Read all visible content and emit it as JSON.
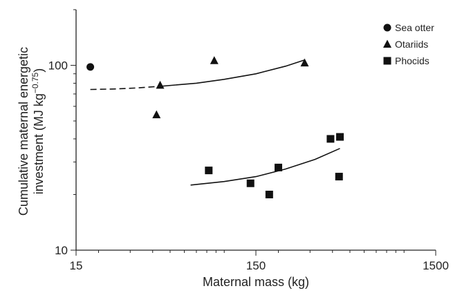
{
  "chart_data": {
    "type": "scatter",
    "title": "",
    "xlabel": "Maternal mass (kg)",
    "ylabel_line1": "Cumulative maternal energetic",
    "ylabel_line2_prefix": "investment (MJ kg",
    "ylabel_exponent": "−0.75",
    "ylabel_line2_suffix": ")",
    "x_scale": "log",
    "y_scale": "log",
    "xlim": [
      15,
      1500
    ],
    "ylim": [
      10,
      200
    ],
    "x_ticks": [
      15,
      150,
      1500
    ],
    "y_ticks": [
      10,
      100
    ],
    "x_tick_labels": [
      "15",
      "150",
      "1500"
    ],
    "y_tick_labels": [
      "10",
      "100"
    ],
    "grid": false,
    "legend_position": "top-right",
    "series": [
      {
        "name": "Sea otter",
        "marker": "circle",
        "points": [
          {
            "x": 18,
            "y": 98
          }
        ]
      },
      {
        "name": "Otariids",
        "marker": "triangle",
        "points": [
          {
            "x": 42,
            "y": 54
          },
          {
            "x": 44,
            "y": 78
          },
          {
            "x": 88,
            "y": 106
          },
          {
            "x": 280,
            "y": 103
          }
        ]
      },
      {
        "name": "Phocids",
        "marker": "square",
        "points": [
          {
            "x": 82,
            "y": 27
          },
          {
            "x": 140,
            "y": 23
          },
          {
            "x": 178,
            "y": 20
          },
          {
            "x": 200,
            "y": 28
          },
          {
            "x": 390,
            "y": 40
          },
          {
            "x": 440,
            "y": 41
          },
          {
            "x": 435,
            "y": 25
          }
        ]
      }
    ],
    "fits": [
      {
        "style": "dashed",
        "points": [
          {
            "x": 18,
            "y": 74
          },
          {
            "x": 25,
            "y": 74.5
          },
          {
            "x": 33,
            "y": 75.5
          },
          {
            "x": 44,
            "y": 77
          }
        ]
      },
      {
        "style": "solid",
        "points": [
          {
            "x": 44,
            "y": 77
          },
          {
            "x": 70,
            "y": 80
          },
          {
            "x": 100,
            "y": 84
          },
          {
            "x": 150,
            "y": 90
          },
          {
            "x": 220,
            "y": 99
          },
          {
            "x": 280,
            "y": 107
          }
        ]
      },
      {
        "style": "solid",
        "points": [
          {
            "x": 65,
            "y": 22.5
          },
          {
            "x": 100,
            "y": 23.5
          },
          {
            "x": 150,
            "y": 25
          },
          {
            "x": 220,
            "y": 27.5
          },
          {
            "x": 320,
            "y": 31
          },
          {
            "x": 440,
            "y": 35.5
          }
        ]
      }
    ]
  }
}
